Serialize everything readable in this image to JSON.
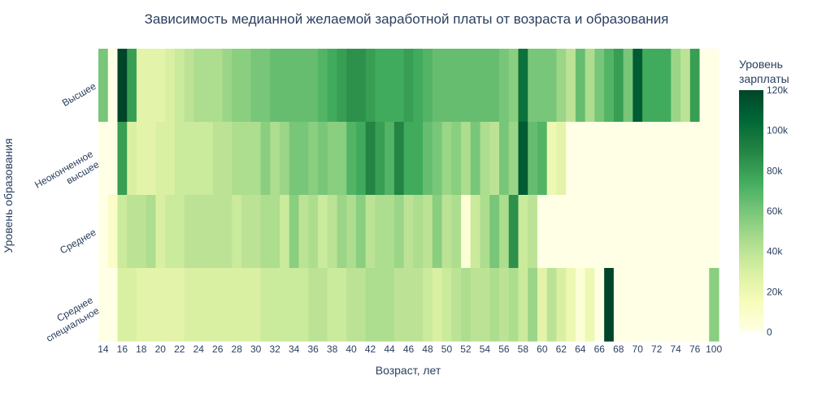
{
  "chart_data": {
    "type": "heatmap",
    "title": "Зависимость медианной желаемой заработной платы от возраста и образования",
    "xlabel": "Возраст, лет",
    "ylabel": "Уровень образования",
    "x": [
      14,
      15,
      16,
      17,
      18,
      19,
      20,
      21,
      22,
      23,
      24,
      25,
      26,
      27,
      28,
      29,
      30,
      31,
      32,
      33,
      34,
      35,
      36,
      37,
      38,
      39,
      40,
      41,
      42,
      43,
      44,
      45,
      46,
      47,
      48,
      49,
      50,
      51,
      52,
      53,
      54,
      55,
      56,
      57,
      58,
      59,
      60,
      61,
      62,
      63,
      64,
      65,
      66,
      67,
      68,
      69,
      70,
      71,
      72,
      73,
      74,
      75,
      76,
      77,
      100
    ],
    "x_ticks": [
      14,
      16,
      18,
      20,
      22,
      24,
      26,
      28,
      30,
      32,
      34,
      36,
      38,
      40,
      42,
      44,
      46,
      48,
      50,
      52,
      54,
      56,
      58,
      60,
      62,
      64,
      66,
      68,
      70,
      72,
      74,
      76,
      100
    ],
    "categories": [
      "Высшее",
      "Неоконченное высшее",
      "Среднее",
      "Среднее специальное"
    ],
    "category_lines": [
      [
        "Высшее"
      ],
      [
        "Неоконченное",
        "высшее"
      ],
      [
        "Среднее"
      ],
      [
        "Среднее",
        "специальное"
      ]
    ],
    "zlim": [
      0,
      120000
    ],
    "colorscale_name": "Greens",
    "colorbar": {
      "title_lines": [
        "Уровень",
        "зарплаты"
      ],
      "ticks": [
        0,
        20000,
        40000,
        60000,
        80000,
        100000,
        120000
      ],
      "tick_labels": [
        "0",
        "20k",
        "40k",
        "60k",
        "80k",
        "100k",
        "120k"
      ]
    },
    "z": [
      [
        60000,
        0,
        120000,
        80000,
        25000,
        25000,
        25000,
        30000,
        35000,
        40000,
        45000,
        45000,
        45000,
        50000,
        55000,
        55000,
        60000,
        60000,
        65000,
        65000,
        65000,
        65000,
        65000,
        70000,
        75000,
        80000,
        85000,
        85000,
        80000,
        75000,
        75000,
        75000,
        80000,
        75000,
        70000,
        65000,
        65000,
        65000,
        65000,
        65000,
        65000,
        65000,
        60000,
        55000,
        100000,
        60000,
        60000,
        60000,
        50000,
        40000,
        65000,
        45000,
        60000,
        70000,
        80000,
        60000,
        110000,
        75000,
        75000,
        75000,
        50000,
        40000,
        80000,
        0,
        0
      ],
      [
        0,
        0,
        80000,
        30000,
        25000,
        25000,
        30000,
        30000,
        35000,
        35000,
        35000,
        35000,
        40000,
        40000,
        45000,
        45000,
        45000,
        55000,
        45000,
        50000,
        60000,
        60000,
        55000,
        60000,
        55000,
        55000,
        70000,
        75000,
        90000,
        80000,
        70000,
        90000,
        75000,
        75000,
        65000,
        60000,
        50000,
        55000,
        45000,
        60000,
        45000,
        40000,
        60000,
        50000,
        110000,
        65000,
        70000,
        20000,
        25000,
        0,
        0,
        0,
        0,
        0,
        0,
        0,
        0,
        0,
        0,
        0,
        0,
        0,
        0,
        0,
        0
      ],
      [
        0,
        10000,
        35000,
        40000,
        40000,
        45000,
        30000,
        35000,
        35000,
        40000,
        40000,
        40000,
        40000,
        40000,
        35000,
        40000,
        40000,
        45000,
        45000,
        35000,
        55000,
        40000,
        45000,
        35000,
        40000,
        50000,
        45000,
        55000,
        40000,
        45000,
        45000,
        50000,
        40000,
        45000,
        40000,
        55000,
        40000,
        45000,
        5000,
        35000,
        45000,
        60000,
        45000,
        85000,
        35000,
        40000,
        0,
        0,
        0,
        0,
        0,
        0,
        0,
        0,
        0,
        0,
        0,
        0,
        0,
        0,
        0,
        0,
        0,
        0,
        0
      ],
      [
        0,
        0,
        30000,
        30000,
        25000,
        25000,
        25000,
        25000,
        25000,
        30000,
        30000,
        30000,
        30000,
        30000,
        30000,
        30000,
        30000,
        35000,
        35000,
        35000,
        35000,
        35000,
        40000,
        40000,
        35000,
        35000,
        40000,
        40000,
        45000,
        45000,
        45000,
        40000,
        40000,
        40000,
        35000,
        30000,
        35000,
        40000,
        45000,
        40000,
        40000,
        45000,
        40000,
        45000,
        35000,
        50000,
        25000,
        40000,
        30000,
        20000,
        5000,
        20000,
        0,
        120000,
        0,
        0,
        0,
        0,
        0,
        0,
        0,
        0,
        0,
        0,
        55000
      ]
    ]
  }
}
